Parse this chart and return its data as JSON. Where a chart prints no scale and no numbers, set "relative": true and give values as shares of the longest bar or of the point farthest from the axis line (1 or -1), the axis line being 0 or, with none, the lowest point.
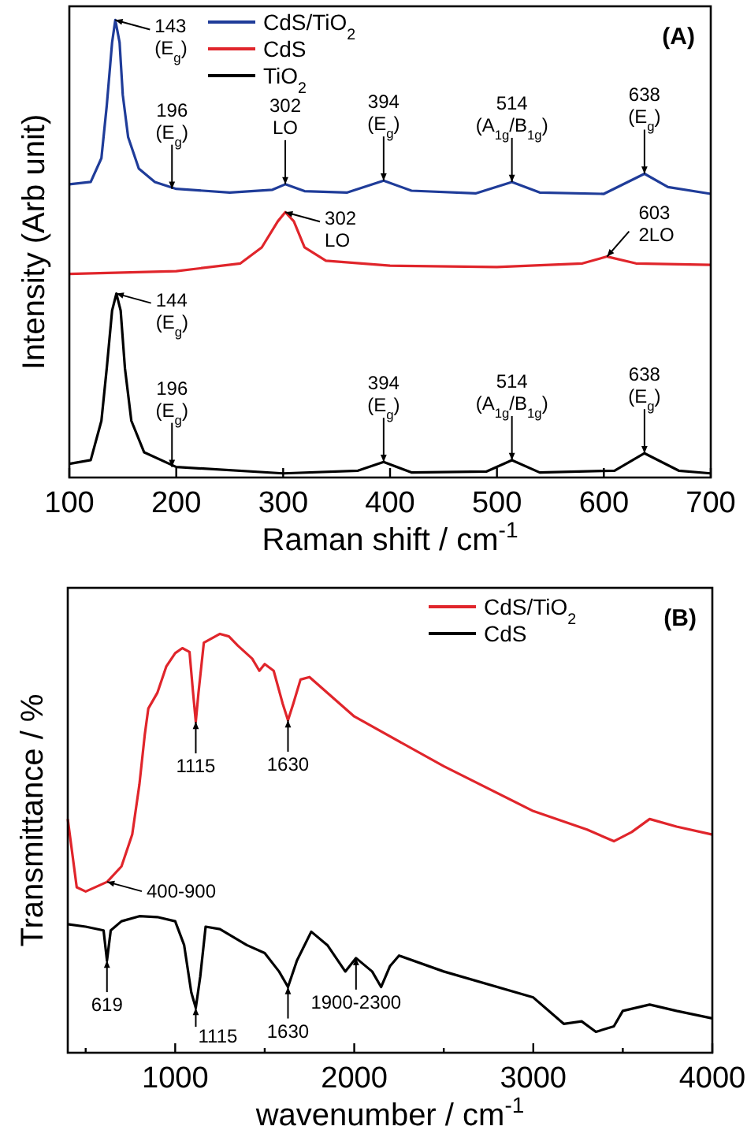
{
  "chart_data": [
    {
      "type": "line",
      "relative": true,
      "xlabel": "Raman shift / cm$^{-1}$",
      "ylabel": "Intensity (Arb unit)",
      "xlim": [
        100,
        700
      ],
      "xticks": [
        100,
        200,
        300,
        400,
        500,
        600,
        700
      ],
      "legend": "top",
      "grid": false,
      "marker": "none",
      "line_style": "solid",
      "series": [
        {
          "name": "CdS/TiO$_{2}$",
          "color": "#1f3c99",
          "x": [
            100,
            120,
            130,
            135,
            140,
            143,
            147,
            150,
            155,
            165,
            180,
            200,
            250,
            290,
            302,
            320,
            360,
            394,
            420,
            480,
            514,
            540,
            600,
            638,
            660,
            700
          ],
          "values": [
            0.641,
            0.646,
            0.698,
            0.813,
            0.951,
            1,
            0.951,
            0.836,
            0.744,
            0.675,
            0.646,
            0.631,
            0.623,
            0.629,
            0.641,
            0.626,
            0.623,
            0.649,
            0.627,
            0.621,
            0.646,
            0.623,
            0.62,
            0.664,
            0.635,
            0.62
          ]
        },
        {
          "name": "CdS",
          "color": "#e0252b",
          "x": [
            100,
            200,
            260,
            280,
            295,
            302,
            310,
            320,
            340,
            400,
            500,
            580,
            603,
            630,
            700
          ],
          "values": [
            0.445,
            0.451,
            0.468,
            0.503,
            0.56,
            0.58,
            0.56,
            0.503,
            0.474,
            0.463,
            0.46,
            0.468,
            0.483,
            0.468,
            0.465
          ]
        },
        {
          "name": "TiO$_{2}$",
          "color": "#000000",
          "x": [
            100,
            120,
            130,
            135,
            140,
            144,
            148,
            152,
            158,
            170,
            200,
            300,
            370,
            394,
            420,
            490,
            514,
            540,
            610,
            638,
            670,
            700
          ],
          "values": [
            0.03,
            0.038,
            0.124,
            0.239,
            0.365,
            0.402,
            0.365,
            0.239,
            0.124,
            0.055,
            0.023,
            0.009,
            0.015,
            0.034,
            0.011,
            0.013,
            0.038,
            0.011,
            0.015,
            0.053,
            0.015,
            0.009
          ]
        }
      ],
      "annotations": [
        {
          "text": "143\n(E$_{g}$)",
          "x": 143,
          "y": 1
        },
        {
          "text": "196\n(E$_{g}$)",
          "x": 196,
          "y": 0.631
        },
        {
          "text": "302\nLO",
          "x": 302,
          "y": 0.641
        },
        {
          "text": "394\n(E$_{g}$)",
          "x": 394,
          "y": 0.649
        },
        {
          "text": "514\n(A$_{1g}$/B$_{1g}$)",
          "x": 514,
          "y": 0.646
        },
        {
          "text": "638\n(E$_{g}$)",
          "x": 638,
          "y": 0.664
        },
        {
          "text": "302\nLO",
          "x": 302,
          "y": 0.58
        },
        {
          "text": "603\n2LO",
          "x": 603,
          "y": 0.483
        },
        {
          "text": "144\n(E$_{g}$)",
          "x": 144,
          "y": 0.402
        },
        {
          "text": "196\n(E$_{g}$)",
          "x": 196,
          "y": 0.023
        },
        {
          "text": "394\n(E$_{g}$)",
          "x": 394,
          "y": 0.034
        },
        {
          "text": "514\n(A$_{1g}$/B$_{1g}$)",
          "x": 514,
          "y": 0.038
        },
        {
          "text": "638\n(E$_{g}$)",
          "x": 638,
          "y": 0.053
        },
        "(A)"
      ]
    },
    {
      "type": "line",
      "relative": true,
      "xlabel": "wavenumber / cm$^{-1}$",
      "ylabel": "Transmittance / %",
      "xlim": [
        400,
        4000
      ],
      "xticks": [
        {
          "value": 500,
          "label": null
        },
        1000,
        {
          "value": 1500,
          "label": null
        },
        2000,
        {
          "value": 2500,
          "label": null
        },
        3000,
        {
          "value": 3500,
          "label": null
        },
        4000
      ],
      "legend": "top right",
      "grid": false,
      "marker": "none",
      "line_style": "solid",
      "series": [
        {
          "name": "CdS/TiO$_{2}$",
          "color": "#e0252b",
          "x": [
            400,
            450,
            500,
            620,
            700,
            760,
            800,
            830,
            850,
            900,
            950,
            1000,
            1040,
            1080,
            1100,
            1115,
            1130,
            1160,
            1250,
            1300,
            1350,
            1430,
            1470,
            1500,
            1550,
            1600,
            1630,
            1660,
            1700,
            1750,
            1800,
            2000,
            2500,
            3000,
            3300,
            3450,
            3550,
            3650,
            3800,
            4000
          ],
          "values": [
            0.558,
            0.395,
            0.385,
            0.408,
            0.445,
            0.521,
            0.64,
            0.759,
            0.822,
            0.859,
            0.922,
            0.954,
            0.966,
            0.957,
            0.859,
            0.79,
            0.859,
            0.979,
            1,
            0.994,
            0.972,
            0.941,
            0.912,
            0.928,
            0.912,
            0.834,
            0.794,
            0.834,
            0.891,
            0.897,
            0.878,
            0.803,
            0.684,
            0.577,
            0.533,
            0.505,
            0.527,
            0.558,
            0.54,
            0.521
          ]
        },
        {
          "name": "CdS",
          "color": "#000000",
          "x": [
            400,
            500,
            600,
            619,
            640,
            700,
            800,
            900,
            1000,
            1050,
            1090,
            1115,
            1140,
            1170,
            1250,
            1400,
            1500,
            1580,
            1630,
            1680,
            1760,
            1850,
            1950,
            2010,
            2100,
            2150,
            2200,
            2250,
            2500,
            3000,
            3170,
            3270,
            3350,
            3450,
            3500,
            3650,
            3800,
            4000
          ],
          "values": [
            0.307,
            0.301,
            0.292,
            0.22,
            0.292,
            0.314,
            0.326,
            0.324,
            0.314,
            0.257,
            0.144,
            0.107,
            0.182,
            0.301,
            0.295,
            0.257,
            0.238,
            0.194,
            0.157,
            0.22,
            0.289,
            0.257,
            0.194,
            0.226,
            0.194,
            0.157,
            0.207,
            0.232,
            0.194,
            0.132,
            0.069,
            0.075,
            0.05,
            0.063,
            0.1,
            0.115,
            0.1,
            0.082
          ]
        }
      ],
      "annotations": [
        {
          "text": "1115",
          "x": 1115,
          "y": 0.79
        },
        {
          "text": "1630",
          "x": 1630,
          "y": 0.794
        },
        {
          "text": "400-900",
          "x": 620,
          "y": 0.408
        },
        {
          "text": "619",
          "x": 619,
          "y": 0.22
        },
        {
          "text": "1115",
          "x": 1115,
          "y": 0.107
        },
        {
          "text": "1630",
          "x": 1630,
          "y": 0.157
        },
        {
          "text": "1900-2300",
          "x": 2010,
          "y": 0.226
        },
        "(B)"
      ]
    }
  ]
}
